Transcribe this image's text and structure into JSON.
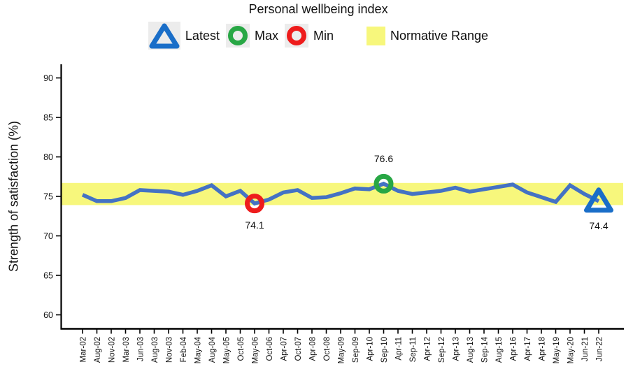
{
  "chart": {
    "title": "Personal wellbeing index",
    "ylabel": "Strength of satisfaction (%)",
    "legend_items": [
      {
        "icon": "triangle-outline-icon",
        "label": "Latest",
        "color": "#1a6ec8"
      },
      {
        "icon": "circle-outline-icon",
        "label": "Max",
        "color": "#28a745"
      },
      {
        "icon": "circle-outline-icon",
        "label": "Min",
        "color": "#ee1c1c"
      },
      {
        "icon": "band-swatch-icon",
        "label": "Normative Range",
        "color": "#f7f77c"
      }
    ]
  },
  "chart_data": {
    "type": "line",
    "title": "Personal wellbeing index",
    "xlabel": "",
    "ylabel": "Strength of satisfaction (%)",
    "ylim": [
      58.3,
      91.7
    ],
    "yticks": [
      60,
      65,
      70,
      75,
      80,
      85,
      90
    ],
    "grid": false,
    "legend_position": "top",
    "categories": [
      "Mar-02",
      "Aug-02",
      "Nov-02",
      "Mar-03",
      "Jun-03",
      "Aug-03",
      "Nov-03",
      "Feb-04",
      "May-04",
      "Aug-04",
      "May-05",
      "Oct-05",
      "May-06",
      "Oct-06",
      "Apr-07",
      "Oct-07",
      "Apr-08",
      "Oct-08",
      "May-09",
      "Sep-09",
      "Apr-10",
      "Sep-10",
      "Apr-11",
      "Sep-11",
      "Apr-12",
      "Sep-12",
      "Apr-13",
      "Aug-13",
      "Sep-14",
      "Aug-15",
      "Apr-16",
      "Apr-17",
      "Apr-18",
      "May-19",
      "May-20",
      "Jun-21",
      "Jun-22"
    ],
    "series": [
      {
        "name": "Personal wellbeing index",
        "values": [
          75.2,
          74.4,
          74.4,
          74.8,
          75.8,
          75.7,
          75.6,
          75.2,
          75.7,
          76.4,
          75.0,
          75.7,
          74.1,
          74.6,
          75.5,
          75.8,
          74.8,
          74.9,
          75.4,
          76.0,
          75.9,
          76.6,
          75.7,
          75.3,
          75.5,
          75.7,
          76.1,
          75.6,
          75.9,
          76.2,
          76.5,
          75.5,
          74.9,
          74.3,
          76.4,
          75.3,
          74.4
        ]
      }
    ],
    "normative_range": {
      "label": "Normative Range",
      "low": 73.9,
      "high": 76.7
    },
    "annotations": [
      {
        "type": "min",
        "category": "May-06",
        "value": 74.1,
        "label": "74.1"
      },
      {
        "type": "max",
        "category": "Sep-10",
        "value": 76.6,
        "label": "76.6"
      },
      {
        "type": "latest",
        "category": "Jun-22",
        "value": 74.4,
        "label": "74.4"
      }
    ],
    "colors": {
      "line": "#4472c4",
      "latest_marker": "#1a6ec8",
      "max_marker": "#28a745",
      "min_marker": "#ee1c1c",
      "normative_band": "#f7f77c",
      "axis": "#000000"
    }
  }
}
